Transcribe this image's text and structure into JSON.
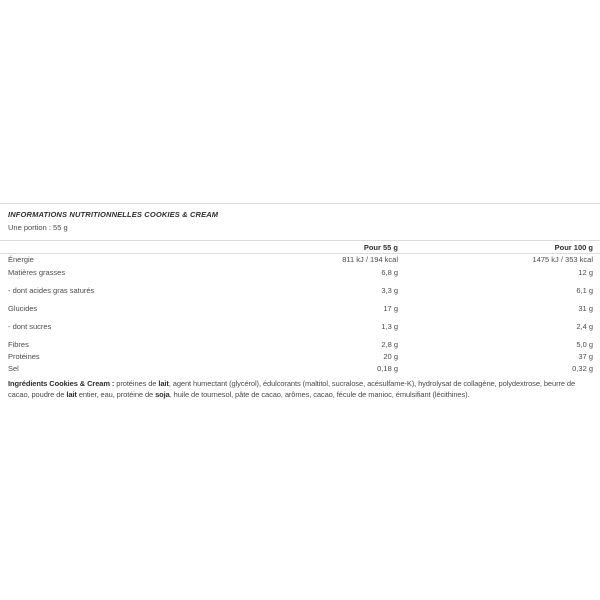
{
  "colors": {
    "border": "#dcdcdc",
    "text": "#4a4a4a",
    "text_strong": "#2e2e2e",
    "background": "#ffffff"
  },
  "nutrition": {
    "title": "INFORMATIONS NUTRITIONNELLES COOKIES & CREAM",
    "portion": "Une portion : 55 g",
    "columns": [
      "Pour 55 g",
      "Pour 100 g"
    ],
    "rows": [
      {
        "label": "Énergie",
        "per55": "811 kJ / 194 kcal",
        "per100": "1475 kJ / 353 kcal"
      },
      {
        "label": "Matières grasses",
        "per55": "6,8 g",
        "per100": "12 g"
      },
      {
        "label": "- dont acides gras saturés",
        "per55": "3,3 g",
        "per100": "6,1 g"
      },
      {
        "label": "Glucides",
        "per55": "17 g",
        "per100": "31 g"
      },
      {
        "label": "- dont sucres",
        "per55": "1,3 g",
        "per100": "2,4 g"
      },
      {
        "label": "Fibres",
        "per55": "2,8 g",
        "per100": "5,0 g"
      },
      {
        "label": "Protéines",
        "per55": "20 g",
        "per100": "37 g"
      },
      {
        "label": "Sel",
        "per55": "0,18 g",
        "per100": "0,32 g"
      }
    ],
    "ingredients_segments": [
      {
        "text": "Ingrédients Cookies & Cream : ",
        "bold": true
      },
      {
        "text": "protéines de ",
        "bold": false
      },
      {
        "text": "lait",
        "bold": true
      },
      {
        "text": ", agent humectant (glycérol), édulcorants (maltitol, sucralose, acésulfame-K), hydrolysat de collagène, polydextrose, beurre de cacao, poudre de ",
        "bold": false
      },
      {
        "text": "lait",
        "bold": true
      },
      {
        "text": " entier, eau, protéine de ",
        "bold": false
      },
      {
        "text": "soja",
        "bold": true
      },
      {
        "text": ", huile de tournesol, pâte de cacao, arômes, cacao, fécule de manioc, émulsifiant (lécithines).",
        "bold": false
      }
    ]
  }
}
